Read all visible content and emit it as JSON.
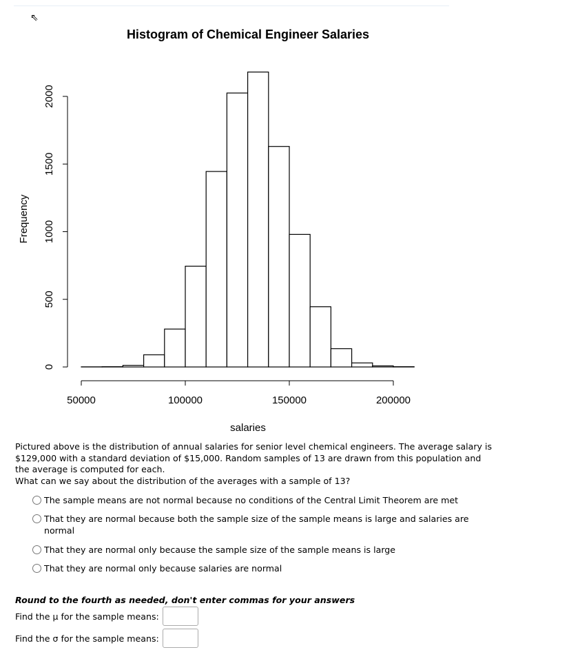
{
  "chart_data": {
    "type": "bar",
    "title": "Histogram of Chemical Engineer Salaries",
    "xlabel": "salaries",
    "ylabel": "Frequency",
    "bin_edges": [
      50000,
      60000,
      70000,
      80000,
      90000,
      100000,
      110000,
      120000,
      130000,
      140000,
      150000,
      160000,
      170000,
      180000,
      190000,
      200000,
      210000
    ],
    "values": [
      1,
      2,
      12,
      90,
      280,
      745,
      1445,
      2025,
      2180,
      1630,
      980,
      445,
      135,
      30,
      8,
      2
    ],
    "xticks": [
      "50000",
      "100000",
      "150000",
      "200000"
    ],
    "xtick_values": [
      50000,
      100000,
      150000,
      200000
    ],
    "yticks": [
      "0",
      "500",
      "1000",
      "1500",
      "2000"
    ],
    "ytick_values": [
      0,
      500,
      1000,
      1500,
      2000
    ],
    "xlim": [
      50000,
      210000
    ],
    "ylim": [
      0,
      2180
    ]
  },
  "question": {
    "paragraph": "Pictured above is the distribution of annual salaries for senior level chemical engineers. The average salary is $129,000 with a standard deviation of $15,000. Random samples of 13 are drawn from this population and the average is computed for each.",
    "prompt": "What can we say about the distribution of the averages with a sample of 13?",
    "options": [
      "The sample means are not normal because no conditions of the Central Limit Theorem are met",
      "That they are normal because both the sample size of the sample means is large and salaries are normal",
      "That they are normal only because the sample size of the sample means is large",
      "That they are normal only because salaries are normal"
    ],
    "note": "Round to the fourth as needed, don't enter commas for your answers",
    "mu_label": "Find the μ for the sample means:",
    "sigma_label": "Find the σ for the sample means:"
  }
}
